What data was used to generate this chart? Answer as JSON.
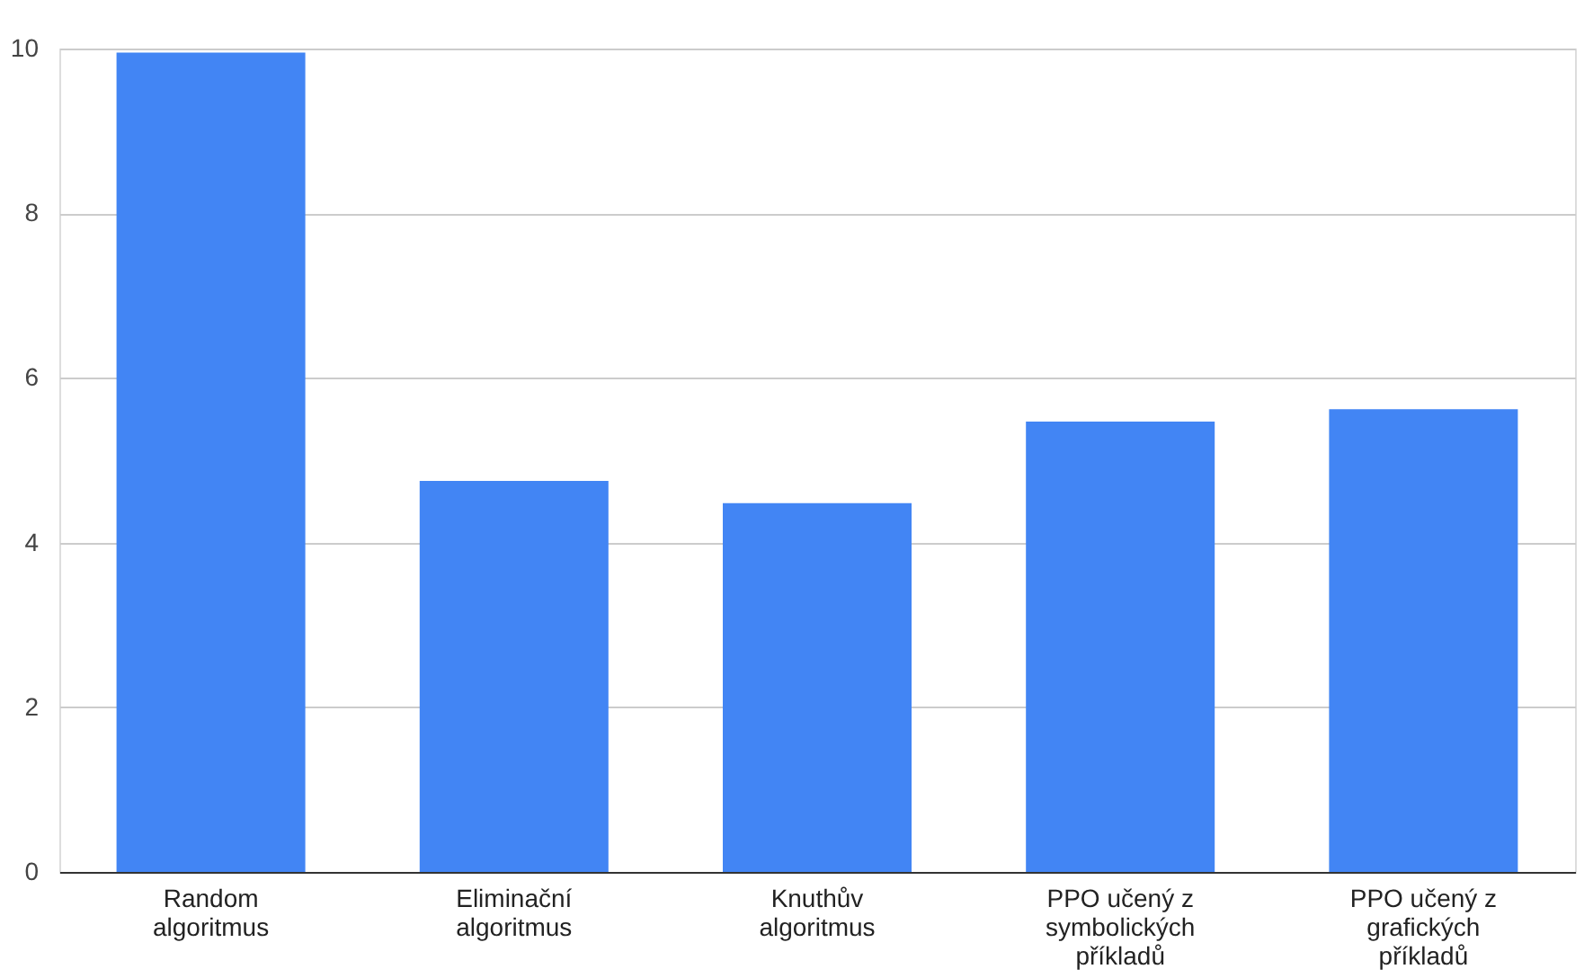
{
  "chart_data": {
    "type": "bar",
    "categories": [
      "Random algoritmus",
      "Eliminační algoritmus",
      "Knuthův algoritmus",
      "PPO učený z symbolických příkladů",
      "PPO učený z grafických příkladů"
    ],
    "values": [
      9.95,
      4.75,
      4.48,
      5.47,
      5.62
    ],
    "color": "#4285f4",
    "ylim": [
      0,
      10
    ],
    "yticks": [
      0,
      2,
      4,
      6,
      8,
      10
    ],
    "grid": "y"
  }
}
